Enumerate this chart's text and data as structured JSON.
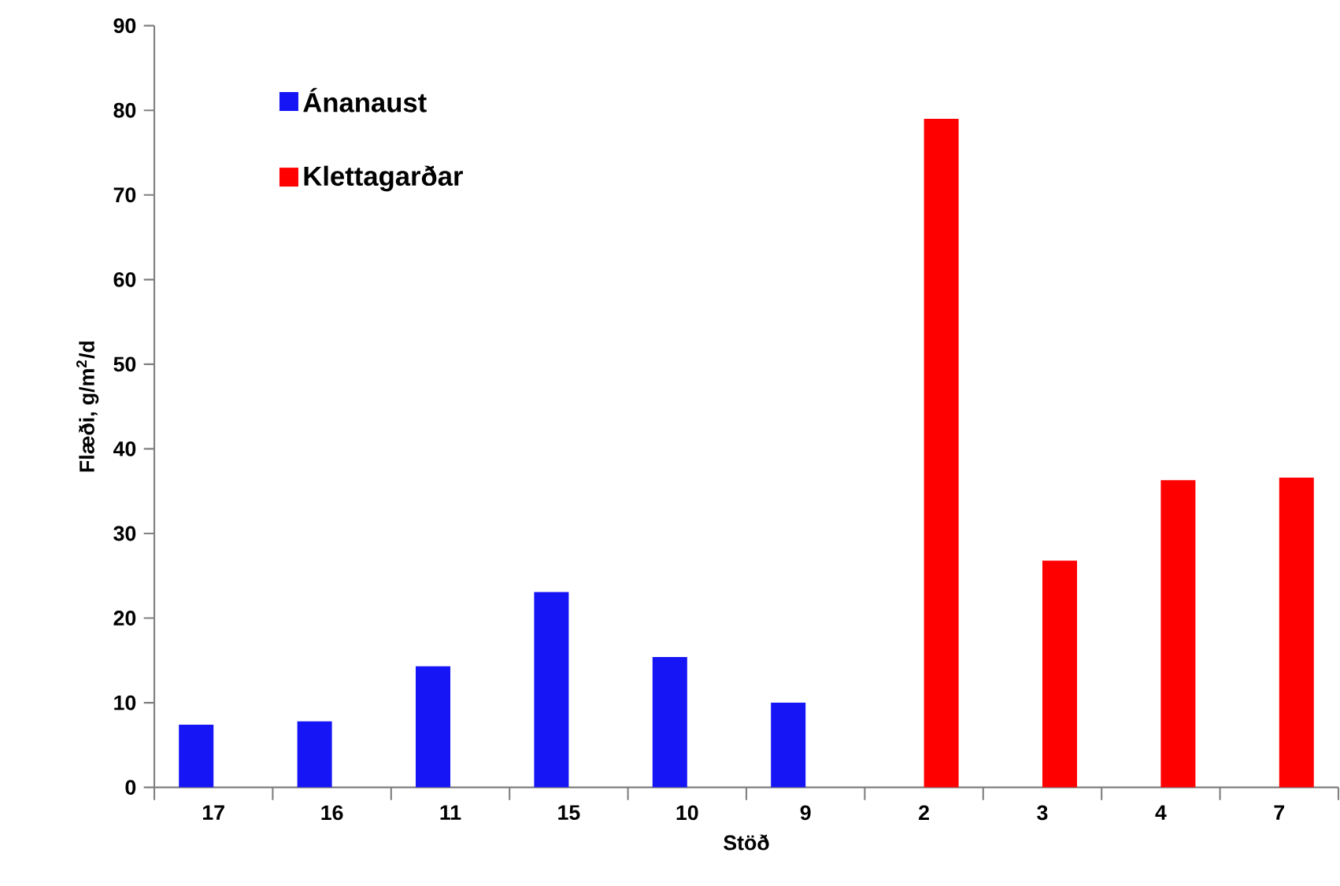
{
  "chart_data": {
    "type": "bar",
    "xlabel": "Stöð",
    "ylabel": "Flæði, g/m$^{2}$/d",
    "categories": [
      "17",
      "16",
      "11",
      "15",
      "10",
      "9",
      "2",
      "3",
      "4",
      "7"
    ],
    "series": [
      {
        "name": "Ánanaust",
        "color": "#1515f5",
        "values": [
          7.4,
          7.8,
          14.3,
          23.1,
          15.4,
          10.0,
          null,
          null,
          null,
          null
        ]
      },
      {
        "name": "Klettagarðar",
        "color": "#ff0000",
        "values": [
          null,
          null,
          null,
          null,
          null,
          null,
          79.0,
          26.8,
          36.3,
          36.6
        ]
      }
    ],
    "ylim": [
      0,
      90
    ],
    "yticks": [
      0,
      10,
      20,
      30,
      40,
      50,
      60,
      70,
      80,
      90
    ],
    "grid": false,
    "legend": "top left"
  }
}
